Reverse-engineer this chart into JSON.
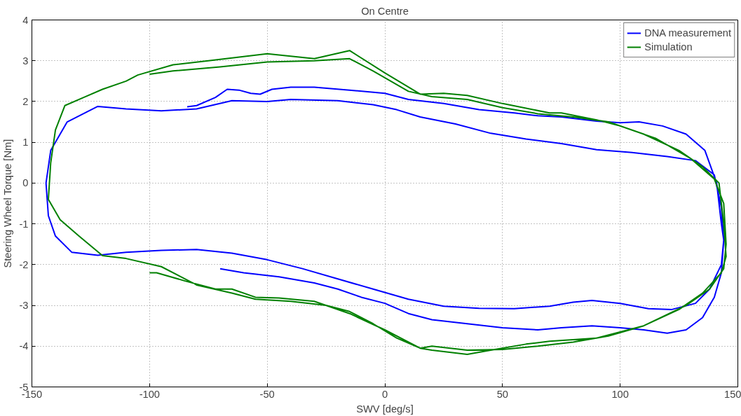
{
  "chart_data": {
    "type": "line",
    "title": "On Centre",
    "xlabel": "SWV [deg/s]",
    "ylabel": "Steering Wheel Torque [Nm]",
    "xlim": [
      -150,
      150
    ],
    "ylim": [
      -5,
      4
    ],
    "xticks": [
      -150,
      -100,
      -50,
      0,
      50,
      100,
      150
    ],
    "yticks": [
      -5,
      -4,
      -3,
      -2,
      -1,
      0,
      1,
      2,
      3,
      4
    ],
    "grid": true,
    "legend": "top right",
    "line_style": "solid",
    "marker": "none",
    "series": [
      {
        "name": "DNA measurement",
        "color": "#0000ff",
        "x": [
          -84,
          -80,
          -72,
          -67,
          -62,
          -57,
          -53,
          -48,
          -40,
          -30,
          -15,
          0,
          10,
          25,
          40,
          55,
          65,
          75,
          90,
          100,
          108,
          118,
          128,
          136,
          141,
          143,
          144,
          143,
          138,
          132,
          122,
          112,
          100,
          88,
          80,
          70,
          55,
          40,
          25,
          10,
          -5,
          -20,
          -35,
          -50,
          -65,
          -80,
          -95,
          -110,
          -122,
          -133,
          -140,
          -143,
          -144,
          -142,
          -135,
          -122,
          -110,
          -95,
          -80,
          -65,
          -50,
          -40,
          -20,
          -5,
          5,
          15,
          30,
          45,
          60,
          75,
          90,
          105,
          120,
          132,
          140,
          143,
          144,
          143,
          140,
          135,
          128,
          120,
          110,
          100,
          88,
          75,
          65,
          50,
          35,
          20,
          10,
          0,
          -10,
          -20,
          -30,
          -45,
          -60,
          -70
        ],
        "values": [
          1.87,
          1.9,
          2.1,
          2.3,
          2.28,
          2.2,
          2.18,
          2.3,
          2.35,
          2.35,
          2.28,
          2.2,
          2.05,
          1.95,
          1.8,
          1.72,
          1.65,
          1.62,
          1.52,
          1.48,
          1.5,
          1.4,
          1.2,
          0.8,
          0,
          -1,
          -1.4,
          -2,
          -2.6,
          -2.95,
          -3.1,
          -3.08,
          -2.95,
          -2.88,
          -2.92,
          -3.02,
          -3.08,
          -3.07,
          -3.02,
          -2.85,
          -2.6,
          -2.35,
          -2.1,
          -1.88,
          -1.72,
          -1.63,
          -1.65,
          -1.7,
          -1.77,
          -1.7,
          -1.3,
          -0.8,
          0,
          0.8,
          1.5,
          1.88,
          1.82,
          1.77,
          1.82,
          2.02,
          2.0,
          2.05,
          2.02,
          1.92,
          1.8,
          1.62,
          1.45,
          1.22,
          1.08,
          0.97,
          0.82,
          0.75,
          0.65,
          0.55,
          0.2,
          -0.6,
          -1.4,
          -2.2,
          -2.8,
          -3.3,
          -3.6,
          -3.68,
          -3.6,
          -3.55,
          -3.5,
          -3.55,
          -3.6,
          -3.55,
          -3.45,
          -3.35,
          -3.2,
          -2.95,
          -2.8,
          -2.6,
          -2.45,
          -2.3,
          -2.2,
          -2.1
        ]
      },
      {
        "name": "Simulation",
        "color": "#008000",
        "x": [
          -100,
          -97,
          -85,
          -72,
          -65,
          -55,
          -45,
          -30,
          -15,
          0,
          10,
          15,
          20,
          35,
          45,
          60,
          70,
          90,
          110,
          128,
          138,
          144,
          145,
          144,
          140,
          130,
          115,
          100,
          90,
          75,
          70,
          50,
          35,
          25,
          15,
          0,
          -15,
          -30,
          -50,
          -75,
          -90,
          -105,
          -110,
          -120,
          -128,
          -136,
          -140,
          -142,
          -143,
          -138,
          -130,
          -120,
          -110,
          -95,
          -80,
          -65,
          -55,
          -40,
          -25,
          -15,
          -5,
          5,
          15,
          20,
          35,
          50,
          65,
          80,
          95,
          110,
          125,
          135,
          143,
          145,
          144,
          142,
          135,
          125,
          110,
          95,
          80,
          65,
          50,
          35,
          20,
          10,
          -5,
          -15,
          -30,
          -50,
          -70,
          -90,
          -100
        ],
        "values": [
          -2.2,
          -2.2,
          -2.4,
          -2.6,
          -2.6,
          -2.8,
          -2.82,
          -2.9,
          -3.2,
          -3.6,
          -3.9,
          -4.05,
          -4.1,
          -4.2,
          -4.1,
          -3.95,
          -3.88,
          -3.8,
          -3.5,
          -3.0,
          -2.6,
          -2.1,
          -1.5,
          -0.5,
          0.1,
          0.6,
          1.1,
          1.4,
          1.55,
          1.72,
          1.72,
          1.95,
          2.15,
          2.2,
          2.18,
          2.7,
          3.25,
          3.05,
          3.17,
          3.0,
          2.9,
          2.65,
          2.5,
          2.3,
          2.1,
          1.9,
          1.3,
          0.5,
          -0.4,
          -0.9,
          -1.3,
          -1.78,
          -1.85,
          -2.05,
          -2.5,
          -2.7,
          -2.85,
          -2.9,
          -3.0,
          -3.15,
          -3.45,
          -3.8,
          -4.05,
          -4.0,
          -4.1,
          -4.08,
          -4.0,
          -3.9,
          -3.75,
          -3.5,
          -3.1,
          -2.7,
          -2.2,
          -1.8,
          -1.0,
          0,
          0.4,
          0.8,
          1.2,
          1.5,
          1.62,
          1.7,
          1.85,
          2.05,
          2.12,
          2.25,
          2.75,
          3.05,
          3.0,
          2.97,
          2.85,
          2.75,
          2.67
        ]
      }
    ]
  }
}
